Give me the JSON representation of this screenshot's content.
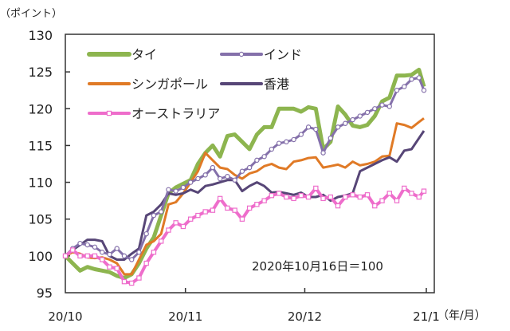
{
  "chart_data": {
    "type": "line",
    "ylabel": "（ポイント）",
    "xlabel": "（年/月）",
    "annotation": "2020年10月16日＝100",
    "ylim": [
      95,
      130
    ],
    "yticks": [
      95,
      100,
      105,
      110,
      115,
      120,
      125,
      130
    ],
    "x_ticks": [
      {
        "label": "20/10",
        "index": 0
      },
      {
        "label": "20/11",
        "index": 16.3
      },
      {
        "label": "20/12",
        "index": 32.5
      },
      {
        "label": "21/1",
        "index": 49
      }
    ],
    "grid": false,
    "legend_placement": "top-left",
    "series": [
      {
        "name": "タイ",
        "color": "#8db54f",
        "marker": "none",
        "values": [
          100,
          99,
          98,
          98.5,
          98.2,
          98,
          97.8,
          97.3,
          97,
          97.5,
          99,
          101,
          102.5,
          105.5,
          108.5,
          109.3,
          109.8,
          110.3,
          112.5,
          114,
          115,
          113.5,
          116.3,
          116.5,
          115.5,
          114.5,
          116.5,
          117.5,
          117.5,
          120,
          120,
          120,
          119.6,
          120.2,
          120,
          114.5,
          115.5,
          120.3,
          119.2,
          117.7,
          117.5,
          117.8,
          119,
          121,
          121.5,
          124.5,
          124.5,
          124.6,
          125.3,
          123
        ]
      },
      {
        "name": "インド",
        "color": "#8470aa",
        "marker": "circle",
        "values": [
          100,
          101,
          101.7,
          101.5,
          101.2,
          100.5,
          100.2,
          101,
          100,
          99.5,
          100.5,
          103,
          105.5,
          106,
          109,
          108.8,
          109.3,
          110,
          110.5,
          111,
          112,
          110.5,
          110.8,
          110.3,
          111.5,
          112,
          113,
          113.5,
          114.5,
          115.3,
          115.5,
          115.8,
          116.5,
          117.5,
          117.2,
          114,
          116,
          117.5,
          118,
          118.5,
          119,
          119.5,
          120,
          120.5,
          120.3,
          122.5,
          123,
          124,
          124.2,
          122.5
        ]
      },
      {
        "name": "シンガポール",
        "color": "#e07a26",
        "marker": "none",
        "values": [
          100,
          100.5,
          100.3,
          99.8,
          99.7,
          99.8,
          99.5,
          99,
          97.5,
          97.5,
          99.5,
          101.5,
          102,
          103,
          107,
          107.3,
          108.5,
          110,
          111.5,
          114,
          113,
          112,
          111.8,
          111,
          110.5,
          111.2,
          111.5,
          112.2,
          112.5,
          112,
          111.8,
          112.8,
          113,
          113.3,
          113.4,
          112,
          112.2,
          112.4,
          112,
          112.8,
          112.3,
          112.5,
          112.8,
          113.5,
          113.6,
          118,
          117.8,
          117.4,
          118.2,
          118.7
        ]
      },
      {
        "name": "香港",
        "color": "#574677",
        "marker": "none",
        "values": [
          100,
          100.8,
          101.5,
          102.2,
          102.2,
          102,
          100,
          99.5,
          99.5,
          100.3,
          101,
          105.5,
          106,
          107,
          108.5,
          108.3,
          108.5,
          109,
          108.6,
          109.5,
          109.7,
          110,
          110.3,
          110.3,
          108.8,
          109.5,
          110,
          109.5,
          108.6,
          108.7,
          108.5,
          108.3,
          108.6,
          108,
          108,
          108.3,
          107.5,
          108,
          108.2,
          108.5,
          111.5,
          112,
          112.5,
          113,
          113.4,
          112.8,
          114.3,
          114.5,
          116,
          117
        ]
      },
      {
        "name": "オーストラリア",
        "color": "#ee6dcb",
        "marker": "square",
        "values": [
          100,
          100.8,
          100,
          100,
          100,
          99.5,
          98.5,
          98.3,
          96.5,
          96.3,
          97,
          99,
          100.5,
          102,
          103.5,
          104.5,
          104,
          105,
          105.5,
          106,
          106.2,
          107.8,
          106.5,
          106.2,
          105,
          106.5,
          107,
          107.5,
          108.2,
          108.5,
          108,
          107.8,
          108.2,
          108,
          109.2,
          107.8,
          108,
          106.8,
          108,
          108.3,
          108,
          108.3,
          106.8,
          107.5,
          108.5,
          107.5,
          109.2,
          108.5,
          108,
          108.8
        ]
      }
    ]
  }
}
